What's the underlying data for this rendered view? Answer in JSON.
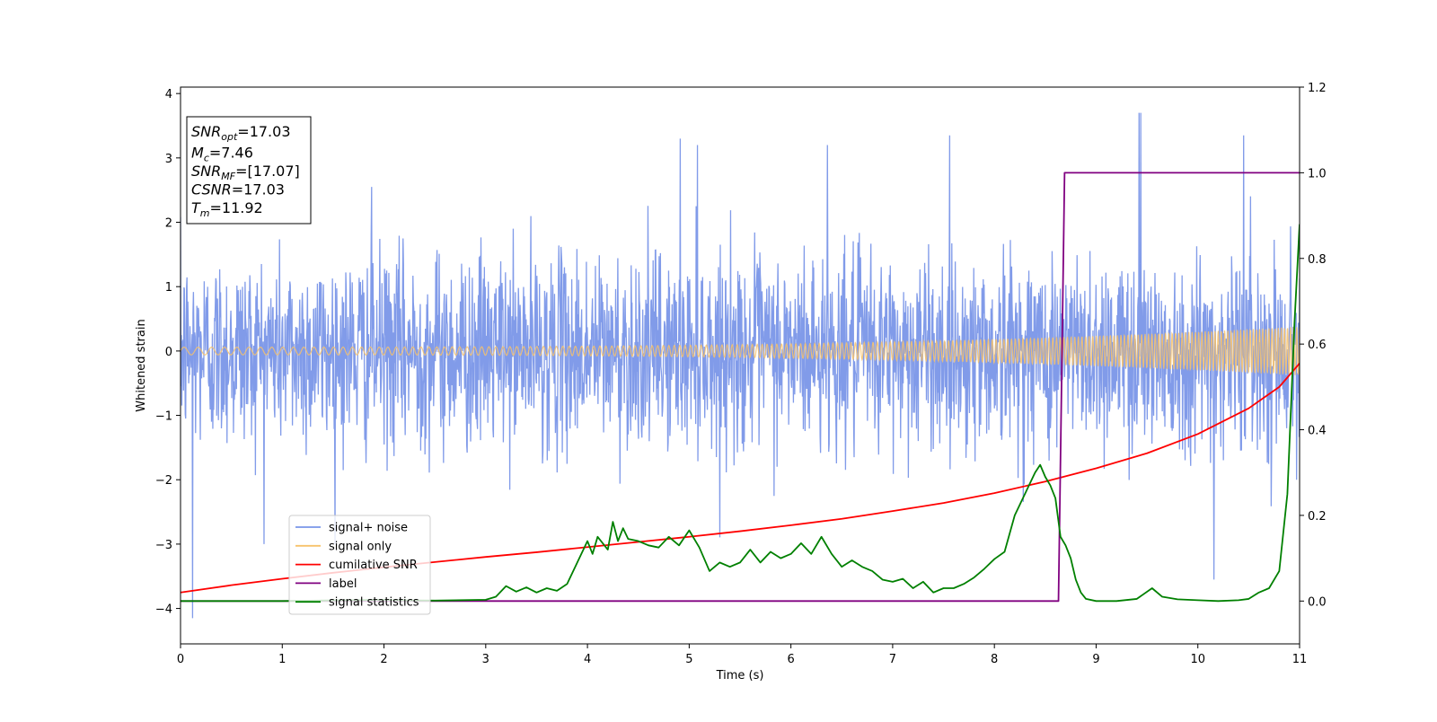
{
  "chart_data": {
    "type": "line",
    "xlabel": "Time (s)",
    "ylabel": "Whitened strain",
    "ylabel_right": "",
    "xlim": [
      0,
      11
    ],
    "ylim": [
      -4.55,
      4.1
    ],
    "ylim_right": [
      -0.1,
      1.2
    ],
    "x_ticks": [
      0,
      1,
      2,
      3,
      4,
      5,
      6,
      7,
      8,
      9,
      10,
      11
    ],
    "y_ticks": [
      -4,
      -3,
      -2,
      -1,
      0,
      1,
      2,
      3,
      4
    ],
    "y_ticks_right": [
      0.0,
      0.2,
      0.4,
      0.6,
      0.8,
      1.0,
      1.2
    ],
    "grid": false,
    "legend_position": "lower-left",
    "annotation": [
      {
        "main": "SNR",
        "sub": "opt",
        "rest": "=17.03"
      },
      {
        "main": "M",
        "sub": "c",
        "rest": "=7.46"
      },
      {
        "main": "SNR",
        "sub": "MF",
        "rest": "=[17.07]"
      },
      {
        "main": "CSNR",
        "sub": "",
        "rest": "=17.03"
      },
      {
        "main": "T",
        "sub": "m",
        "rest": "=11.92"
      }
    ],
    "series": [
      {
        "name": "signal+ noise",
        "axis": "left",
        "color": "#7a96e8",
        "style": "noise",
        "sigma": 0.75,
        "peaks": [
          [
            0.12,
            -4.15
          ],
          [
            1.88,
            2.55
          ],
          [
            4.91,
            3.3
          ],
          [
            5.08,
            3.2
          ],
          [
            6.36,
            3.2
          ],
          [
            7.56,
            3.35
          ],
          [
            9.42,
            3.7
          ],
          [
            9.44,
            3.7
          ],
          [
            10.16,
            -3.55
          ],
          [
            10.45,
            3.35
          ]
        ]
      },
      {
        "name": "signal only",
        "axis": "left",
        "color": "#f7c26b",
        "style": "chirp",
        "amplitude_start": 0.06,
        "amplitude_end": 0.38
      },
      {
        "name": "cumilative SNR",
        "axis": "right",
        "color": "#ff0000",
        "style": "line",
        "x": [
          0,
          0.5,
          1,
          1.5,
          2,
          2.5,
          3,
          3.5,
          4,
          4.5,
          5,
          5.5,
          6,
          6.5,
          7,
          7.5,
          8,
          8.5,
          9,
          9.5,
          10,
          10.5,
          10.8,
          11
        ],
        "values": [
          0.02,
          0.037,
          0.052,
          0.066,
          0.079,
          0.091,
          0.103,
          0.114,
          0.126,
          0.138,
          0.15,
          0.163,
          0.177,
          0.192,
          0.21,
          0.229,
          0.252,
          0.279,
          0.31,
          0.345,
          0.39,
          0.45,
          0.5,
          0.555
        ]
      },
      {
        "name": "label",
        "axis": "right",
        "color": "#800080",
        "style": "line",
        "x": [
          0,
          8.63,
          8.69,
          11
        ],
        "values": [
          0,
          0,
          1,
          1
        ]
      },
      {
        "name": "signal statistics",
        "axis": "right",
        "color": "#008000",
        "style": "line",
        "x": [
          0,
          1,
          2,
          2.1,
          2.5,
          3.0,
          3.1,
          3.2,
          3.3,
          3.4,
          3.5,
          3.6,
          3.7,
          3.8,
          3.9,
          4.0,
          4.05,
          4.1,
          4.2,
          4.25,
          4.3,
          4.35,
          4.4,
          4.5,
          4.6,
          4.7,
          4.8,
          4.9,
          5.0,
          5.1,
          5.2,
          5.3,
          5.4,
          5.5,
          5.6,
          5.7,
          5.8,
          5.9,
          6.0,
          6.1,
          6.2,
          6.3,
          6.4,
          6.5,
          6.6,
          6.7,
          6.8,
          6.9,
          7.0,
          7.1,
          7.2,
          7.3,
          7.4,
          7.5,
          7.6,
          7.7,
          7.8,
          7.9,
          8.0,
          8.1,
          8.2,
          8.3,
          8.4,
          8.45,
          8.5,
          8.55,
          8.6,
          8.65,
          8.7,
          8.75,
          8.8,
          8.85,
          8.9,
          9.0,
          9.2,
          9.4,
          9.55,
          9.65,
          9.8,
          10.0,
          10.2,
          10.4,
          10.5,
          10.6,
          10.7,
          10.8,
          10.88,
          10.95,
          11.0
        ],
        "values": [
          0.0,
          0.0,
          0.003,
          0.002,
          0.001,
          0.003,
          0.01,
          0.035,
          0.022,
          0.032,
          0.02,
          0.03,
          0.024,
          0.04,
          0.09,
          0.14,
          0.11,
          0.15,
          0.12,
          0.185,
          0.14,
          0.17,
          0.145,
          0.14,
          0.13,
          0.125,
          0.15,
          0.13,
          0.165,
          0.125,
          0.07,
          0.09,
          0.08,
          0.09,
          0.12,
          0.09,
          0.115,
          0.1,
          0.11,
          0.135,
          0.11,
          0.15,
          0.11,
          0.08,
          0.095,
          0.08,
          0.07,
          0.05,
          0.045,
          0.052,
          0.03,
          0.045,
          0.02,
          0.03,
          0.03,
          0.04,
          0.055,
          0.075,
          0.098,
          0.115,
          0.2,
          0.25,
          0.3,
          0.318,
          0.29,
          0.27,
          0.24,
          0.15,
          0.13,
          0.1,
          0.05,
          0.02,
          0.005,
          0.0,
          0.0,
          0.005,
          0.03,
          0.01,
          0.004,
          0.002,
          0.0,
          0.002,
          0.005,
          0.02,
          0.03,
          0.07,
          0.25,
          0.65,
          0.88
        ]
      }
    ]
  }
}
